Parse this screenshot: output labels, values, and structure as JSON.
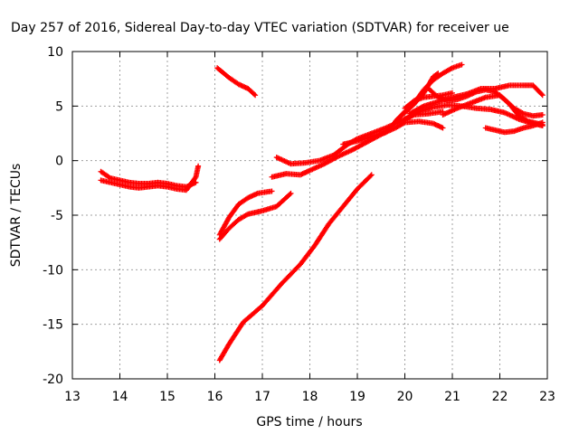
{
  "chart_data": {
    "type": "scatter",
    "title": "Day 257 of 2016, Sidereal Day-to-day VTEC variation (SDTVAR) for receiver ue",
    "xlabel": "GPS time / hours",
    "ylabel": "SDTVAR / TECUs",
    "xlim": [
      13,
      23
    ],
    "ylim": [
      -20,
      10
    ],
    "xticks": [
      13,
      14,
      15,
      16,
      17,
      18,
      19,
      20,
      21,
      22,
      23
    ],
    "yticks": [
      -20,
      -15,
      -10,
      -5,
      0,
      5,
      10
    ],
    "grid": true,
    "series_color": "#ff0000",
    "series": [
      {
        "points": [
          [
            13.6,
            -1.0
          ],
          [
            13.8,
            -1.6
          ],
          [
            14.0,
            -1.8
          ],
          [
            14.2,
            -2.0
          ],
          [
            14.4,
            -2.1
          ],
          [
            14.6,
            -2.1
          ],
          [
            14.8,
            -2.0
          ],
          [
            15.0,
            -2.1
          ],
          [
            15.2,
            -2.3
          ],
          [
            15.4,
            -2.4
          ],
          [
            15.6,
            -2.0
          ]
        ]
      },
      {
        "points": [
          [
            13.6,
            -1.8
          ],
          [
            13.8,
            -2.0
          ],
          [
            14.0,
            -2.2
          ],
          [
            14.2,
            -2.4
          ],
          [
            14.4,
            -2.5
          ],
          [
            14.6,
            -2.4
          ],
          [
            14.8,
            -2.3
          ],
          [
            15.0,
            -2.4
          ],
          [
            15.2,
            -2.6
          ],
          [
            15.4,
            -2.7
          ],
          [
            15.6,
            -1.5
          ],
          [
            15.65,
            -0.5
          ]
        ]
      },
      {
        "points": [
          [
            16.05,
            8.5
          ],
          [
            16.3,
            7.6
          ],
          [
            16.5,
            7.0
          ],
          [
            16.7,
            6.6
          ],
          [
            16.85,
            6.0
          ]
        ]
      },
      {
        "points": [
          [
            16.1,
            -6.8
          ],
          [
            16.3,
            -5.2
          ],
          [
            16.5,
            -4.0
          ],
          [
            16.7,
            -3.4
          ],
          [
            16.9,
            -3.0
          ],
          [
            17.2,
            -2.8
          ]
        ]
      },
      {
        "points": [
          [
            16.1,
            -7.2
          ],
          [
            16.3,
            -6.2
          ],
          [
            16.5,
            -5.4
          ],
          [
            16.7,
            -4.9
          ],
          [
            17.0,
            -4.6
          ],
          [
            17.3,
            -4.2
          ],
          [
            17.6,
            -3.0
          ]
        ]
      },
      {
        "points": [
          [
            16.1,
            -18.3
          ],
          [
            16.3,
            -16.8
          ],
          [
            16.6,
            -14.8
          ],
          [
            17.0,
            -13.3
          ],
          [
            17.4,
            -11.3
          ],
          [
            17.8,
            -9.5
          ],
          [
            18.1,
            -7.8
          ],
          [
            18.4,
            -5.8
          ],
          [
            18.7,
            -4.2
          ],
          [
            19.0,
            -2.6
          ],
          [
            19.3,
            -1.3
          ]
        ]
      },
      {
        "points": [
          [
            17.2,
            -1.5
          ],
          [
            17.5,
            -1.2
          ],
          [
            17.8,
            -1.3
          ],
          [
            18.0,
            -0.9
          ],
          [
            18.3,
            -0.3
          ],
          [
            18.6,
            0.4
          ],
          [
            18.9,
            1.0
          ],
          [
            19.2,
            1.7
          ],
          [
            19.5,
            2.4
          ],
          [
            19.8,
            3.0
          ],
          [
            20.0,
            3.5
          ],
          [
            20.3,
            3.6
          ],
          [
            20.6,
            3.4
          ],
          [
            20.8,
            3.0
          ]
        ]
      },
      {
        "points": [
          [
            17.3,
            0.3
          ],
          [
            17.6,
            -0.3
          ],
          [
            17.9,
            -0.2
          ],
          [
            18.2,
            0.0
          ],
          [
            18.5,
            0.5
          ],
          [
            18.8,
            1.5
          ],
          [
            19.0,
            2.0
          ],
          [
            19.3,
            2.5
          ],
          [
            19.6,
            3.0
          ],
          [
            19.9,
            3.6
          ],
          [
            20.2,
            4.2
          ],
          [
            20.5,
            4.3
          ],
          [
            20.8,
            4.5
          ]
        ]
      },
      {
        "points": [
          [
            18.7,
            1.5
          ],
          [
            19.0,
            1.8
          ],
          [
            19.3,
            2.2
          ],
          [
            19.6,
            2.6
          ],
          [
            19.9,
            4.0
          ],
          [
            20.2,
            5.2
          ],
          [
            20.4,
            6.2
          ],
          [
            20.6,
            7.7
          ],
          [
            20.7,
            8.0
          ]
        ]
      },
      {
        "points": [
          [
            19.8,
            3.6
          ],
          [
            20.0,
            4.5
          ],
          [
            20.2,
            5.3
          ],
          [
            20.4,
            6.5
          ],
          [
            20.6,
            7.4
          ],
          [
            20.8,
            8.0
          ],
          [
            21.0,
            8.5
          ],
          [
            21.2,
            8.8
          ]
        ]
      },
      {
        "points": [
          [
            20.5,
            6.6
          ],
          [
            20.7,
            5.8
          ],
          [
            20.9,
            5.5
          ],
          [
            21.1,
            5.6
          ],
          [
            21.3,
            5.9
          ],
          [
            21.5,
            6.3
          ],
          [
            21.7,
            6.5
          ],
          [
            21.9,
            6.3
          ],
          [
            22.1,
            5.6
          ],
          [
            22.3,
            4.8
          ],
          [
            22.5,
            4.3
          ],
          [
            22.7,
            4.1
          ],
          [
            22.9,
            4.2
          ]
        ]
      },
      {
        "points": [
          [
            20.0,
            3.8
          ],
          [
            20.3,
            4.5
          ],
          [
            20.6,
            4.9
          ],
          [
            20.9,
            5.1
          ],
          [
            21.2,
            5.0
          ],
          [
            21.5,
            4.8
          ],
          [
            21.8,
            4.7
          ],
          [
            22.1,
            4.4
          ],
          [
            22.4,
            3.8
          ],
          [
            22.7,
            3.4
          ],
          [
            22.9,
            3.2
          ]
        ]
      },
      {
        "points": [
          [
            20.1,
            4.3
          ],
          [
            20.4,
            5.0
          ],
          [
            20.7,
            5.4
          ],
          [
            21.0,
            5.8
          ],
          [
            21.3,
            6.1
          ],
          [
            21.6,
            6.6
          ],
          [
            21.9,
            6.6
          ],
          [
            22.2,
            6.9
          ],
          [
            22.5,
            6.9
          ],
          [
            22.7,
            6.9
          ],
          [
            22.9,
            6.0
          ]
        ]
      },
      {
        "points": [
          [
            20.8,
            4.2
          ],
          [
            21.1,
            4.8
          ],
          [
            21.4,
            5.3
          ],
          [
            21.7,
            5.8
          ],
          [
            22.0,
            6.0
          ],
          [
            22.2,
            5.2
          ],
          [
            22.4,
            4.1
          ],
          [
            22.6,
            3.6
          ],
          [
            22.9,
            3.3
          ]
        ]
      },
      {
        "points": [
          [
            21.7,
            3.0
          ],
          [
            21.9,
            2.8
          ],
          [
            22.1,
            2.6
          ],
          [
            22.3,
            2.7
          ],
          [
            22.5,
            3.0
          ],
          [
            22.7,
            3.2
          ],
          [
            22.9,
            3.5
          ]
        ]
      },
      {
        "points": [
          [
            20.0,
            4.8
          ],
          [
            20.2,
            5.5
          ],
          [
            20.4,
            5.8
          ],
          [
            20.6,
            5.9
          ],
          [
            20.8,
            6.0
          ],
          [
            21.0,
            6.2
          ]
        ]
      }
    ]
  }
}
